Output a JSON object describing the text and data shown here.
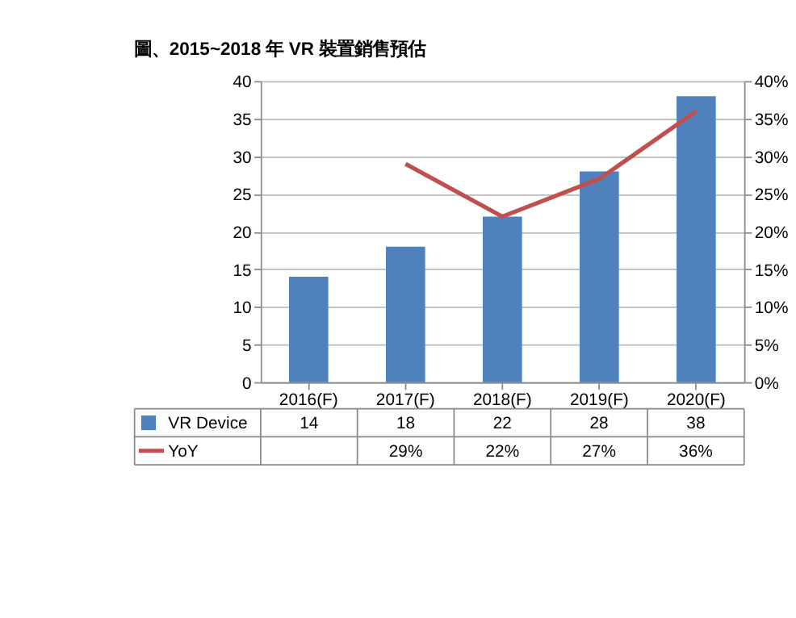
{
  "chart_data": {
    "type": "bar",
    "title": "圖、2015~2018 年 VR 裝置銷售預估",
    "categories": [
      "2016(F)",
      "2017(F)",
      "2018(F)",
      "2019(F)",
      "2020(F)"
    ],
    "series": [
      {
        "name": "VR Device",
        "color": "#4f81bd",
        "values": [
          14,
          18,
          22,
          28,
          38
        ],
        "value_labels": [
          "14",
          "18",
          "22",
          "28",
          "38"
        ]
      },
      {
        "name": "YoY",
        "type": "line",
        "axis": "y2",
        "color": "#c0504d",
        "values": [
          null,
          29,
          22,
          27,
          36
        ],
        "value_labels": [
          null,
          "29%",
          "22%",
          "27%",
          "36%"
        ]
      }
    ],
    "ylim": [
      0,
      40
    ],
    "yticks": [
      0,
      5,
      10,
      15,
      20,
      25,
      30,
      35,
      40
    ],
    "y2lim": [
      0,
      40
    ],
    "y2ticks": [
      {
        "value": 0,
        "label": "0%"
      },
      {
        "value": 5,
        "label": "5%"
      },
      {
        "value": 10,
        "label": "10%"
      },
      {
        "value": 15,
        "label": "15%"
      },
      {
        "value": 20,
        "label": "20%"
      },
      {
        "value": 25,
        "label": "25%"
      },
      {
        "value": 30,
        "label": "30%"
      },
      {
        "value": 35,
        "label": "35%"
      },
      {
        "value": 40,
        "label": "40%"
      }
    ],
    "grid": "y",
    "legend": "bottom",
    "marker": "none",
    "line_style": "solid"
  }
}
